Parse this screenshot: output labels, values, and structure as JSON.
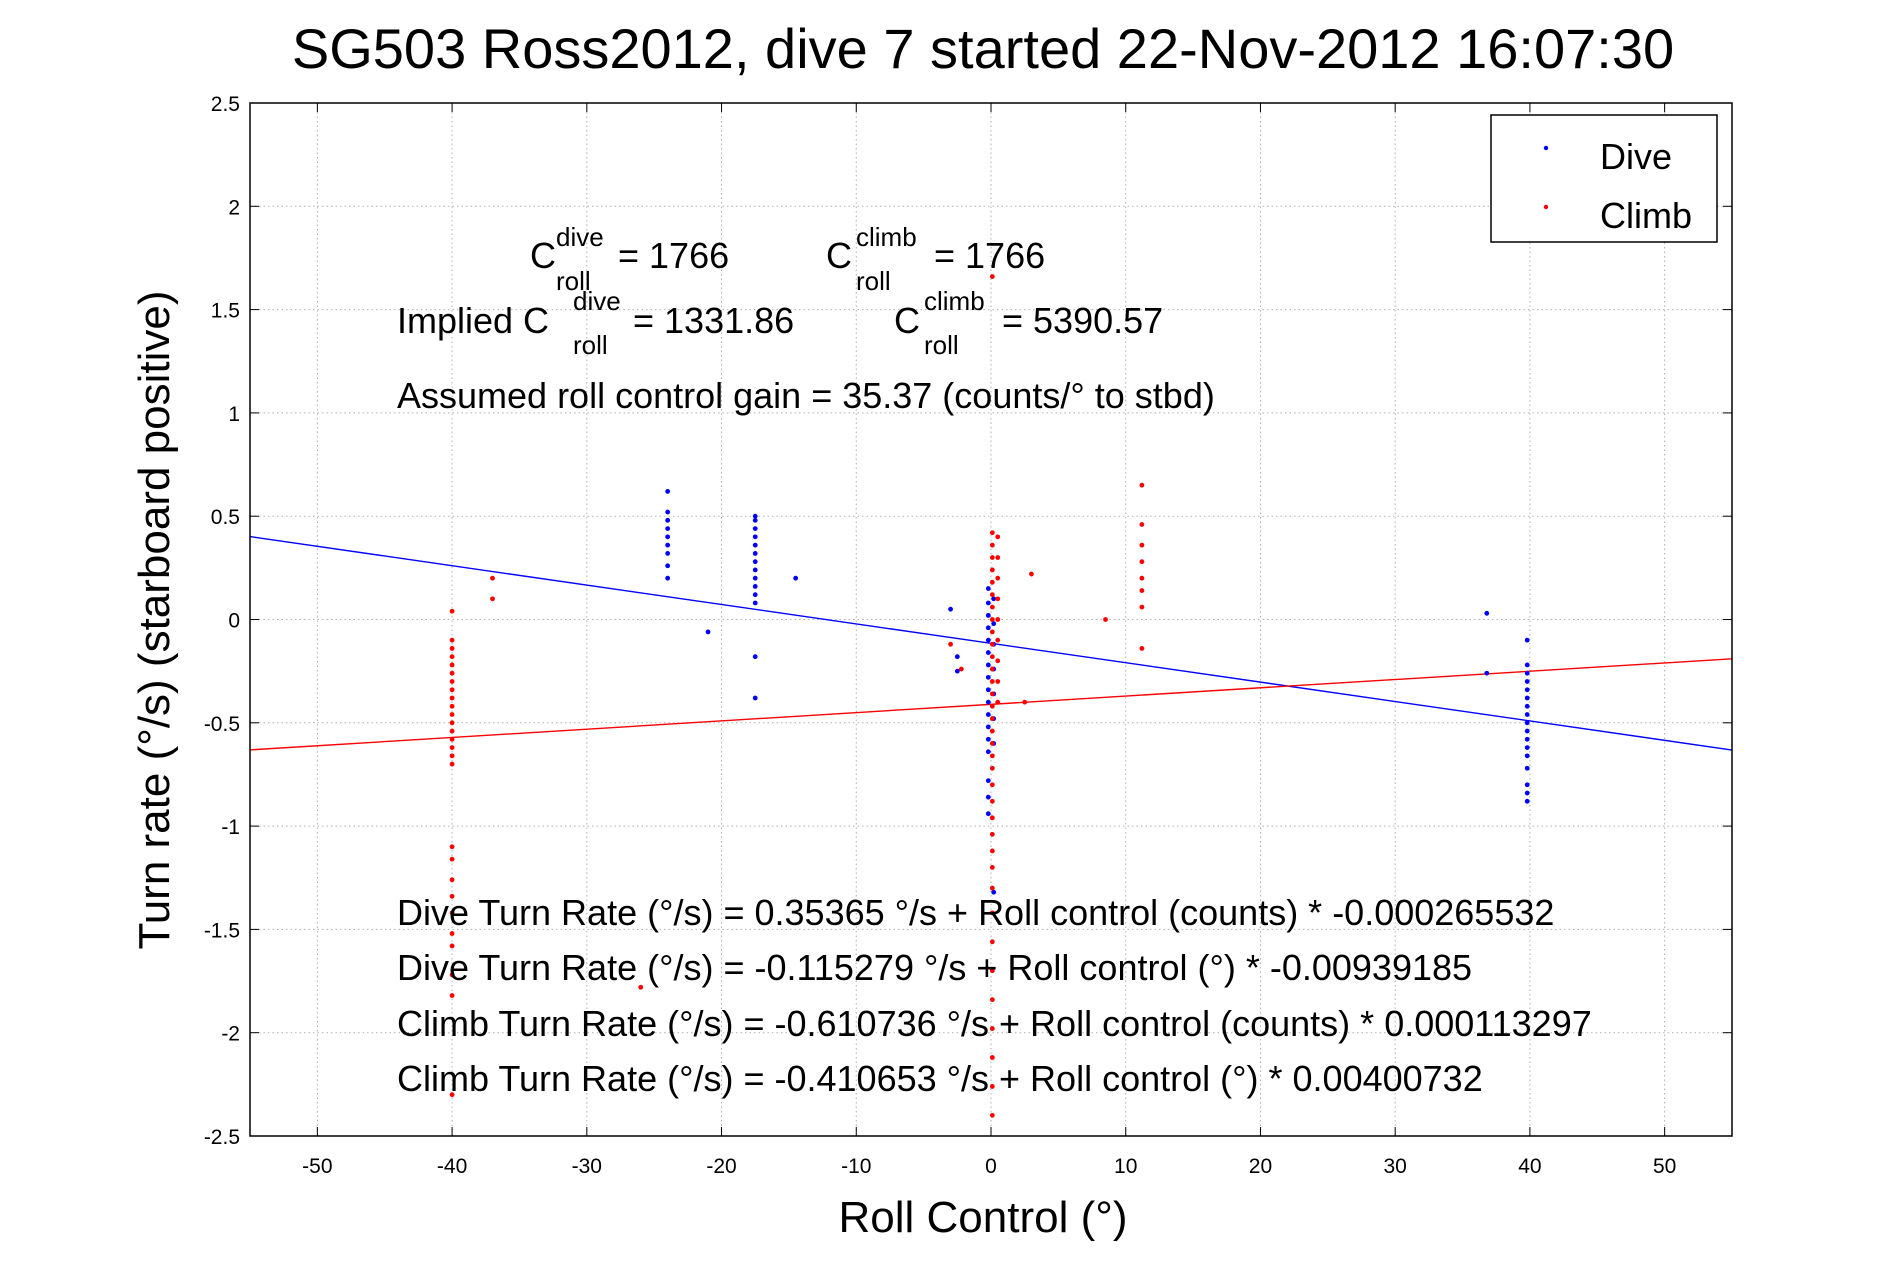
{
  "chart_data": {
    "type": "scatter",
    "title": "SG503 Ross2012, dive 7 started 22-Nov-2012 16:07:30",
    "xlabel": "Roll Control (°)",
    "ylabel": "Turn rate (°/s)  (starboard positive)",
    "xlim": [
      -55,
      55
    ],
    "ylim": [
      -2.5,
      2.5
    ],
    "xticks": [
      -50,
      -40,
      -30,
      -20,
      -10,
      0,
      10,
      20,
      30,
      40,
      50
    ],
    "yticks": [
      -2.5,
      -2,
      -1.5,
      -1,
      -0.5,
      0,
      0.5,
      1,
      1.5,
      2,
      2.5
    ],
    "ytick_labels": [
      "-2.5",
      "-2",
      "-1.5",
      "-1",
      "-0.5",
      "0",
      "0.5",
      "1",
      "1.5",
      "2",
      "2.5"
    ],
    "grid": true,
    "legend_position": "top-right",
    "series": [
      {
        "name": "Dive",
        "color": "#0000ff",
        "points": [
          [
            -24,
            0.62
          ],
          [
            -24,
            0.52
          ],
          [
            -24,
            0.48
          ],
          [
            -24,
            0.44
          ],
          [
            -24,
            0.4
          ],
          [
            -24,
            0.36
          ],
          [
            -24,
            0.32
          ],
          [
            -24,
            0.26
          ],
          [
            -24,
            0.2
          ],
          [
            -17.5,
            0.5
          ],
          [
            -17.5,
            0.48
          ],
          [
            -17.5,
            0.44
          ],
          [
            -17.5,
            0.4
          ],
          [
            -17.5,
            0.36
          ],
          [
            -17.5,
            0.32
          ],
          [
            -17.5,
            0.28
          ],
          [
            -17.5,
            0.24
          ],
          [
            -17.5,
            0.2
          ],
          [
            -17.5,
            0.16
          ],
          [
            -17.5,
            0.12
          ],
          [
            -17.5,
            0.08
          ],
          [
            -14.5,
            0.2
          ],
          [
            -21,
            -0.06
          ],
          [
            -17.5,
            -0.18
          ],
          [
            -17.5,
            -0.38
          ],
          [
            -3,
            0.05
          ],
          [
            -2.5,
            -0.18
          ],
          [
            -2.5,
            -0.25
          ],
          [
            -0.2,
            0.15
          ],
          [
            -0.2,
            0.08
          ],
          [
            -0.2,
            0.02
          ],
          [
            -0.2,
            -0.04
          ],
          [
            -0.2,
            -0.1
          ],
          [
            -0.2,
            -0.16
          ],
          [
            -0.2,
            -0.22
          ],
          [
            -0.2,
            -0.28
          ],
          [
            -0.2,
            -0.34
          ],
          [
            -0.2,
            -0.4
          ],
          [
            -0.2,
            -0.46
          ],
          [
            -0.2,
            -0.52
          ],
          [
            -0.2,
            -0.58
          ],
          [
            -0.2,
            -0.64
          ],
          [
            -0.2,
            -0.78
          ],
          [
            -0.2,
            -0.86
          ],
          [
            -0.2,
            -0.94
          ],
          [
            0.2,
            0.1
          ],
          [
            0.2,
            -0.02
          ],
          [
            0.2,
            -0.12
          ],
          [
            0.2,
            -0.24
          ],
          [
            0.2,
            -0.36
          ],
          [
            0.2,
            -0.48
          ],
          [
            0.2,
            -0.6
          ],
          [
            0.2,
            -1.32
          ],
          [
            36.8,
            0.03
          ],
          [
            36.8,
            -0.26
          ],
          [
            39.8,
            -0.1
          ],
          [
            39.8,
            -0.22
          ],
          [
            39.8,
            -0.26
          ],
          [
            39.8,
            -0.3
          ],
          [
            39.8,
            -0.34
          ],
          [
            39.8,
            -0.38
          ],
          [
            39.8,
            -0.42
          ],
          [
            39.8,
            -0.46
          ],
          [
            39.8,
            -0.5
          ],
          [
            39.8,
            -0.54
          ],
          [
            39.8,
            -0.58
          ],
          [
            39.8,
            -0.62
          ],
          [
            39.8,
            -0.66
          ],
          [
            39.8,
            -0.72
          ],
          [
            39.8,
            -0.8
          ],
          [
            39.8,
            -0.84
          ],
          [
            39.8,
            -0.88
          ]
        ]
      },
      {
        "name": "Climb",
        "color": "#ff0000",
        "points": [
          [
            -40,
            0.04
          ],
          [
            -40,
            -0.1
          ],
          [
            -40,
            -0.14
          ],
          [
            -40,
            -0.18
          ],
          [
            -40,
            -0.22
          ],
          [
            -40,
            -0.26
          ],
          [
            -40,
            -0.3
          ],
          [
            -40,
            -0.34
          ],
          [
            -40,
            -0.38
          ],
          [
            -40,
            -0.42
          ],
          [
            -40,
            -0.46
          ],
          [
            -40,
            -0.5
          ],
          [
            -40,
            -0.54
          ],
          [
            -40,
            -0.58
          ],
          [
            -40,
            -0.62
          ],
          [
            -40,
            -0.66
          ],
          [
            -40,
            -0.7
          ],
          [
            -40,
            -1.1
          ],
          [
            -40,
            -1.16
          ],
          [
            -40,
            -1.26
          ],
          [
            -40,
            -1.34
          ],
          [
            -40,
            -1.42
          ],
          [
            -40,
            -1.52
          ],
          [
            -40,
            -1.58
          ],
          [
            -40,
            -1.72
          ],
          [
            -40,
            -1.82
          ],
          [
            -40,
            -2.3
          ],
          [
            -37,
            0.2
          ],
          [
            -37,
            0.1
          ],
          [
            -26,
            -1.78
          ],
          [
            -3,
            -0.12
          ],
          [
            -2.2,
            -0.24
          ],
          [
            0.1,
            1.66
          ],
          [
            0.1,
            0.42
          ],
          [
            0.1,
            0.36
          ],
          [
            0.1,
            0.3
          ],
          [
            0.1,
            0.24
          ],
          [
            0.1,
            0.18
          ],
          [
            0.1,
            0.12
          ],
          [
            0.1,
            0.06
          ],
          [
            0.1,
            0.0
          ],
          [
            0.1,
            -0.06
          ],
          [
            0.1,
            -0.12
          ],
          [
            0.1,
            -0.18
          ],
          [
            0.1,
            -0.24
          ],
          [
            0.1,
            -0.3
          ],
          [
            0.1,
            -0.36
          ],
          [
            0.1,
            -0.42
          ],
          [
            0.1,
            -0.48
          ],
          [
            0.1,
            -0.54
          ],
          [
            0.1,
            -0.6
          ],
          [
            0.1,
            -0.66
          ],
          [
            0.1,
            -0.72
          ],
          [
            0.1,
            -0.8
          ],
          [
            0.1,
            -0.88
          ],
          [
            0.1,
            -0.96
          ],
          [
            0.1,
            -1.04
          ],
          [
            0.1,
            -1.12
          ],
          [
            0.1,
            -1.2
          ],
          [
            0.1,
            -1.3
          ],
          [
            0.1,
            -1.42
          ],
          [
            0.1,
            -1.56
          ],
          [
            0.1,
            -1.7
          ],
          [
            0.1,
            -1.84
          ],
          [
            0.1,
            -1.98
          ],
          [
            0.1,
            -2.12
          ],
          [
            0.1,
            -2.26
          ],
          [
            0.1,
            -2.4
          ],
          [
            0.5,
            0.4
          ],
          [
            0.5,
            0.3
          ],
          [
            0.5,
            0.2
          ],
          [
            0.5,
            0.1
          ],
          [
            0.5,
            0.0
          ],
          [
            0.5,
            -0.1
          ],
          [
            0.5,
            -0.2
          ],
          [
            0.5,
            -0.3
          ],
          [
            0.5,
            -0.4
          ],
          [
            2.5,
            -0.4
          ],
          [
            3,
            0.22
          ],
          [
            8.5,
            0.0
          ],
          [
            11.2,
            0.65
          ],
          [
            11.2,
            0.46
          ],
          [
            11.2,
            0.36
          ],
          [
            11.2,
            0.28
          ],
          [
            11.2,
            0.2
          ],
          [
            11.2,
            0.14
          ],
          [
            11.2,
            0.06
          ],
          [
            11.2,
            -0.14
          ]
        ]
      }
    ],
    "fit_lines": [
      {
        "series": "Dive",
        "color": "#0000ff",
        "intercept": -0.115279,
        "slope": -0.00939185
      },
      {
        "series": "Climb",
        "color": "#ff0000",
        "intercept": -0.410653,
        "slope": 0.00400732
      }
    ],
    "legend": [
      {
        "label": "Dive",
        "color": "#0000ff"
      },
      {
        "label": "Climb",
        "color": "#ff0000"
      }
    ],
    "annotations": {
      "c_roll": {
        "c_letter": "C",
        "dive_sup": "dive",
        "climb_sup": "climb",
        "roll_sub": "roll",
        "dive_value": " = 1766",
        "climb_value": " = 1766",
        "implied_prefix": "Implied C",
        "implied_dive_value": " = 1331.86",
        "implied_climb_value": " = 5390.57"
      },
      "gain": "Assumed roll control gain = 35.37 (counts/° to stbd)",
      "equations": [
        "Dive Turn Rate (°/s) = 0.35365 °/s + Roll control (counts) * -0.000265532",
        "Dive Turn Rate (°/s) = -0.115279 °/s + Roll control (°) * -0.00939185",
        "Climb Turn Rate (°/s) = -0.610736 °/s + Roll control (counts) * 0.000113297",
        "Climb Turn Rate (°/s) = -0.410653 °/s + Roll control (°) * 0.00400732"
      ]
    }
  }
}
